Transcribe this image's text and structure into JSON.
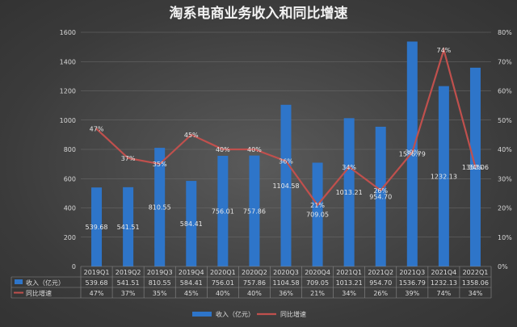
{
  "chart_data": {
    "type": "bar",
    "title": "淘系电商业务收入和同比增速",
    "categories": [
      "2019Q1",
      "2019Q2",
      "2019Q3",
      "2019Q4",
      "2020Q1",
      "2020Q2",
      "2020Q3",
      "2020Q4",
      "2021Q1",
      "2021Q2",
      "2021Q3",
      "2021Q4",
      "2022Q1"
    ],
    "series": [
      {
        "name": "收入（亿元）",
        "kind": "bar",
        "axis": "left",
        "color": "#2e75c9",
        "values": [
          539.68,
          541.51,
          810.55,
          584.41,
          756.01,
          757.86,
          1104.58,
          709.05,
          1013.21,
          954.7,
          1536.79,
          1232.13,
          1358.06
        ],
        "labels": [
          "539.68",
          "541.51",
          "810.55",
          "584.41",
          "756.01",
          "757.86",
          "1104.58",
          "709.05",
          "1013.21",
          "954.70",
          "1536.79",
          "1232.13",
          "1358.06"
        ]
      },
      {
        "name": "同比增速",
        "kind": "line",
        "axis": "right",
        "color": "#c0504d",
        "values": [
          47,
          37,
          35,
          45,
          40,
          40,
          36,
          21,
          34,
          26,
          39,
          74,
          34
        ],
        "labels": [
          "47%",
          "37%",
          "35%",
          "45%",
          "40%",
          "40%",
          "36%",
          "21%",
          "34%",
          "26%",
          "39%",
          "74%",
          "34%"
        ]
      }
    ],
    "ylim_left": [
      0,
      1600
    ],
    "yticks_left": [
      "0",
      "200",
      "400",
      "600",
      "800",
      "1000",
      "1200",
      "1400",
      "1600"
    ],
    "ylim_right": [
      0,
      80
    ],
    "yticks_right": [
      "0%",
      "10%",
      "20%",
      "30%",
      "40%",
      "50%",
      "60%",
      "70%",
      "80%"
    ],
    "grid": true,
    "legend": "bottom"
  }
}
